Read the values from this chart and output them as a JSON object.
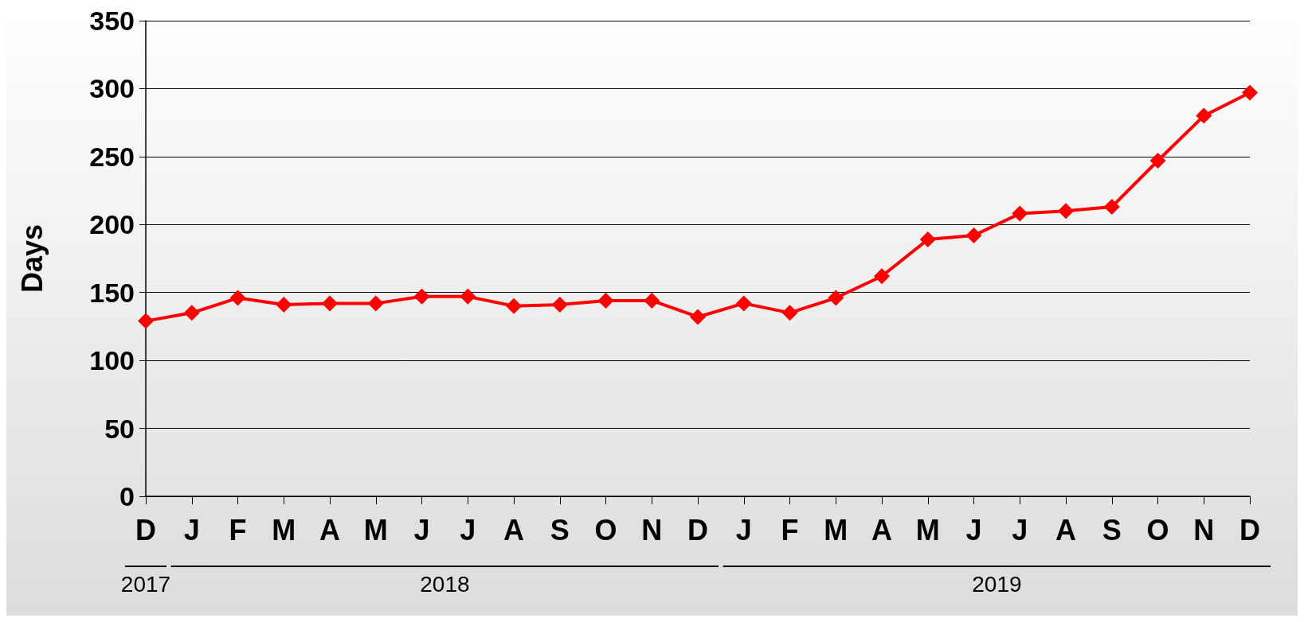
{
  "chart_data": {
    "type": "line",
    "ylabel": "Days",
    "categories": [
      "D",
      "J",
      "F",
      "M",
      "A",
      "M",
      "J",
      "J",
      "A",
      "S",
      "O",
      "N",
      "D",
      "J",
      "F",
      "M",
      "A",
      "M",
      "J",
      "J",
      "A",
      "S",
      "O",
      "N",
      "D"
    ],
    "annotations": [
      "2017",
      "2018",
      "2019"
    ],
    "series": [
      {
        "color": "#ff0000",
        "values": [
          129,
          135,
          146,
          141,
          142,
          142,
          147,
          147,
          140,
          141,
          144,
          144,
          132,
          142,
          135,
          146,
          162,
          189,
          192,
          208,
          210,
          213,
          247,
          280,
          297
        ]
      }
    ],
    "ylim": [
      0,
      350
    ],
    "yticks": [
      0,
      50,
      100,
      150,
      200,
      250,
      300,
      350
    ],
    "grid": "y",
    "marker": "diamond",
    "line_style": "solid"
  }
}
